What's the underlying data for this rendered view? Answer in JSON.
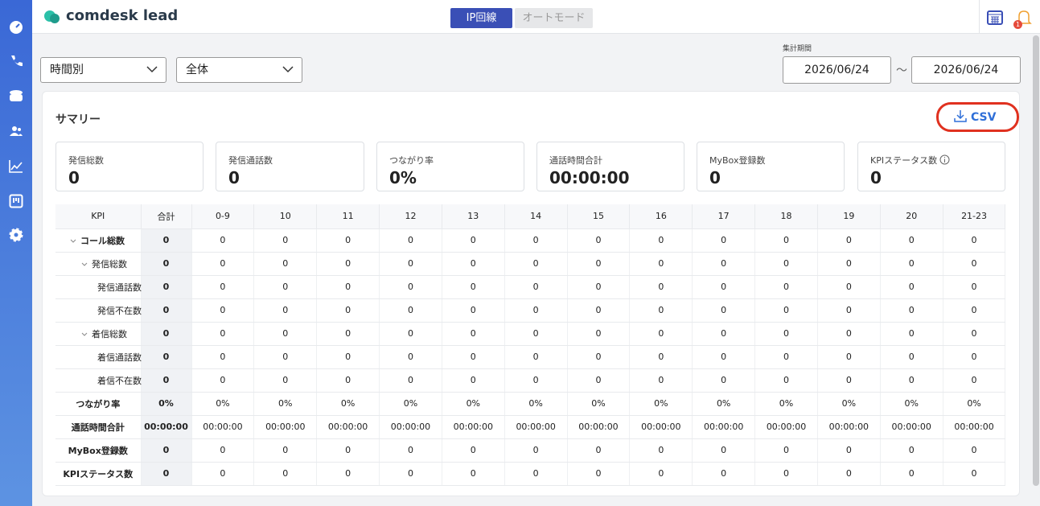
{
  "header": {
    "logo": "comdesk lead",
    "tabs": [
      "IP回線",
      "オートモード"
    ],
    "notification_count": "1"
  },
  "filters": {
    "group_by": "時間別",
    "scope": "全体",
    "period_label": "集計期間",
    "start_date": "2026/06/24",
    "separator": "～",
    "end_date": "2026/06/24"
  },
  "summary": {
    "title": "サマリー",
    "csv_button": "CSV",
    "cards": [
      {
        "label": "発信総数",
        "value": "0"
      },
      {
        "label": "発信通話数",
        "value": "0"
      },
      {
        "label": "つながり率",
        "value": "0%"
      },
      {
        "label": "通話時間合計",
        "value": "00:00:00"
      },
      {
        "label": "MyBox登録数",
        "value": "0"
      },
      {
        "label": "KPIステータス数",
        "value": "0"
      }
    ]
  },
  "table": {
    "columns": [
      "KPI",
      "合計",
      "0-9",
      "10",
      "11",
      "12",
      "13",
      "14",
      "15",
      "16",
      "17",
      "18",
      "19",
      "20",
      "21-23"
    ],
    "rows": [
      {
        "label": "コール総数",
        "cells": [
          "0",
          "0",
          "0",
          "0",
          "0",
          "0",
          "0",
          "0",
          "0",
          "0",
          "0",
          "0",
          "0",
          "0"
        ]
      },
      {
        "label": "発信総数",
        "cells": [
          "0",
          "0",
          "0",
          "0",
          "0",
          "0",
          "0",
          "0",
          "0",
          "0",
          "0",
          "0",
          "0",
          "0"
        ]
      },
      {
        "label": "発信通話数",
        "cells": [
          "0",
          "0",
          "0",
          "0",
          "0",
          "0",
          "0",
          "0",
          "0",
          "0",
          "0",
          "0",
          "0",
          "0"
        ]
      },
      {
        "label": "発信不在数",
        "cells": [
          "0",
          "0",
          "0",
          "0",
          "0",
          "0",
          "0",
          "0",
          "0",
          "0",
          "0",
          "0",
          "0",
          "0"
        ]
      },
      {
        "label": "着信総数",
        "cells": [
          "0",
          "0",
          "0",
          "0",
          "0",
          "0",
          "0",
          "0",
          "0",
          "0",
          "0",
          "0",
          "0",
          "0"
        ]
      },
      {
        "label": "着信通話数",
        "cells": [
          "0",
          "0",
          "0",
          "0",
          "0",
          "0",
          "0",
          "0",
          "0",
          "0",
          "0",
          "0",
          "0",
          "0"
        ]
      },
      {
        "label": "着信不在数",
        "cells": [
          "0",
          "0",
          "0",
          "0",
          "0",
          "0",
          "0",
          "0",
          "0",
          "0",
          "0",
          "0",
          "0",
          "0"
        ]
      },
      {
        "label": "つながり率",
        "cells": [
          "0%",
          "0%",
          "0%",
          "0%",
          "0%",
          "0%",
          "0%",
          "0%",
          "0%",
          "0%",
          "0%",
          "0%",
          "0%",
          "0%"
        ]
      },
      {
        "label": "通話時間合計",
        "cells": [
          "00:00:00",
          "00:00:00",
          "00:00:00",
          "00:00:00",
          "00:00:00",
          "00:00:00",
          "00:00:00",
          "00:00:00",
          "00:00:00",
          "00:00:00",
          "00:00:00",
          "00:00:00",
          "00:00:00",
          "00:00:00"
        ]
      },
      {
        "label": "MyBox登録数",
        "cells": [
          "0",
          "0",
          "0",
          "0",
          "0",
          "0",
          "0",
          "0",
          "0",
          "0",
          "0",
          "0",
          "0",
          "0"
        ]
      },
      {
        "label": "KPIステータス数",
        "cells": [
          "0",
          "0",
          "0",
          "0",
          "0",
          "0",
          "0",
          "0",
          "0",
          "0",
          "0",
          "0",
          "0",
          "0"
        ]
      }
    ]
  }
}
